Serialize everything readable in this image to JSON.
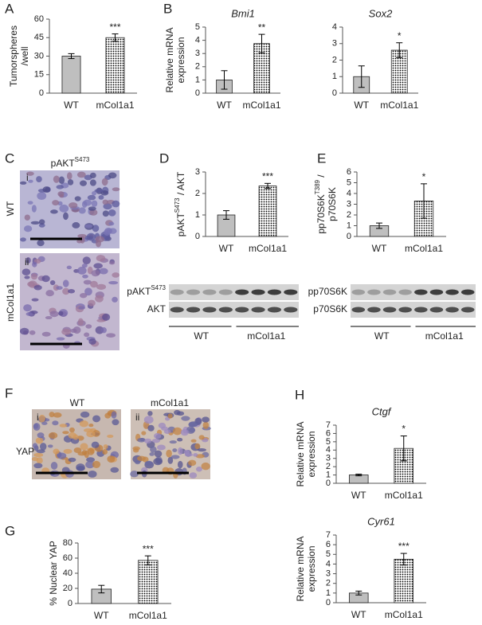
{
  "chart_data": [
    {
      "type": "bar",
      "panel": "A",
      "ylabel": [
        [
          "Tumorspheres"
        ],
        [
          "/well"
        ]
      ],
      "categories": [
        "WT",
        "mCol1a1"
      ],
      "values": [
        30,
        45
      ],
      "errors": [
        2,
        3
      ],
      "colors": [
        "#bfbfbf",
        "#000000"
      ],
      "fills": [
        "solid",
        "dotted"
      ],
      "ylim": [
        0,
        60
      ],
      "yticks": [
        0,
        15,
        30,
        45,
        60
      ],
      "significance": "***"
    },
    {
      "type": "bar",
      "panel": "B",
      "title": "Bmi1",
      "ylabel": [
        [
          "Relative mRNA"
        ],
        [
          "expression"
        ]
      ],
      "categories": [
        "WT",
        "mCol1a1"
      ],
      "values": [
        1,
        3.75
      ],
      "errors": [
        0.7,
        0.7
      ],
      "colors": [
        "#bfbfbf",
        "#000000"
      ],
      "fills": [
        "solid",
        "dotted"
      ],
      "ylim": [
        0,
        5
      ],
      "yticks": [
        0,
        1,
        2,
        3,
        4,
        5
      ],
      "significance": "**"
    },
    {
      "type": "bar",
      "title": "Sox2",
      "categories": [
        "WT",
        "mCol1a1"
      ],
      "values": [
        1,
        2.6
      ],
      "errors": [
        0.65,
        0.45
      ],
      "colors": [
        "#bfbfbf",
        "#000000"
      ],
      "fills": [
        "solid",
        "dotted"
      ],
      "ylim": [
        0,
        4
      ],
      "yticks": [
        0,
        1,
        2,
        3,
        4
      ],
      "significance": "*"
    },
    {
      "type": "bar",
      "panel": "D",
      "ylabel": [
        [
          "pAKT",
          "S473",
          " / AKT"
        ]
      ],
      "categories": [
        "WT",
        "mCol1a1"
      ],
      "values": [
        1,
        2.35
      ],
      "errors": [
        0.2,
        0.12
      ],
      "colors": [
        "#bfbfbf",
        "#000000"
      ],
      "fills": [
        "solid",
        "dotted"
      ],
      "ylim": [
        0,
        3
      ],
      "yticks": [
        0,
        1,
        2,
        3
      ],
      "significance": "***"
    },
    {
      "type": "bar",
      "panel": "E",
      "ylabel": [
        [
          "pp70S6K",
          "T389",
          " /"
        ],
        [
          "p70S6K"
        ]
      ],
      "categories": [
        "WT",
        "mCol1a1"
      ],
      "values": [
        1,
        3.3
      ],
      "errors": [
        0.25,
        1.6
      ],
      "colors": [
        "#bfbfbf",
        "#000000"
      ],
      "fills": [
        "solid",
        "dotted"
      ],
      "ylim": [
        0,
        6
      ],
      "yticks": [
        0,
        1,
        2,
        3,
        4,
        5,
        6
      ],
      "significance": "*"
    },
    {
      "type": "bar",
      "panel": "G",
      "ylabel": [
        [
          "% Nuclear YAP"
        ]
      ],
      "categories": [
        "WT",
        "mCol1a1"
      ],
      "values": [
        19,
        57
      ],
      "errors": [
        5,
        6
      ],
      "colors": [
        "#bfbfbf",
        "#000000"
      ],
      "fills": [
        "solid",
        "dotted"
      ],
      "ylim": [
        0,
        80
      ],
      "yticks": [
        0,
        20,
        40,
        60,
        80
      ],
      "significance": "***"
    },
    {
      "type": "bar",
      "panel": "H",
      "title": "Ctgf",
      "ylabel": [
        [
          "Relative mRNA"
        ],
        [
          "expression"
        ]
      ],
      "categories": [
        "WT",
        "mCol1a1"
      ],
      "values": [
        1,
        4.2
      ],
      "errors": [
        0.1,
        1.5
      ],
      "colors": [
        "#bfbfbf",
        "#000000"
      ],
      "fills": [
        "solid",
        "dotted"
      ],
      "ylim": [
        0,
        7
      ],
      "yticks": [
        0,
        1,
        2,
        3,
        4,
        5,
        6,
        7
      ],
      "significance": "*"
    },
    {
      "type": "bar",
      "title": "Cyr61",
      "ylabel": [
        [
          "Relative mRNA"
        ],
        [
          "expression"
        ]
      ],
      "categories": [
        "WT",
        "mCol1a1"
      ],
      "values": [
        1,
        4.5
      ],
      "errors": [
        0.2,
        0.6
      ],
      "colors": [
        "#bfbfbf",
        "#000000"
      ],
      "fills": [
        "solid",
        "dotted"
      ],
      "ylim": [
        0,
        7
      ],
      "yticks": [
        0,
        1,
        2,
        3,
        4,
        5,
        6,
        7
      ],
      "significance": "***"
    }
  ],
  "micrographs": [
    {
      "panel": "C",
      "title": [
        "pAKT",
        "S473"
      ],
      "rows": [
        "WT",
        "mCol1a1"
      ],
      "tags": [
        "i",
        "ii"
      ]
    },
    {
      "panel": "F",
      "columns": [
        "WT",
        "mCol1a1"
      ],
      "rows": [
        "YAP"
      ],
      "tags": [
        "i",
        "ii"
      ]
    }
  ],
  "blots": [
    {
      "rows": [
        [
          "pAKT",
          "S473"
        ],
        [
          "AKT"
        ]
      ],
      "groups": [
        "WT",
        "mCol1a1"
      ]
    },
    {
      "rows": [
        [
          "pp70S6K"
        ],
        [
          "p70S6K"
        ]
      ],
      "groups": [
        "WT",
        "mCol1a1"
      ]
    }
  ]
}
